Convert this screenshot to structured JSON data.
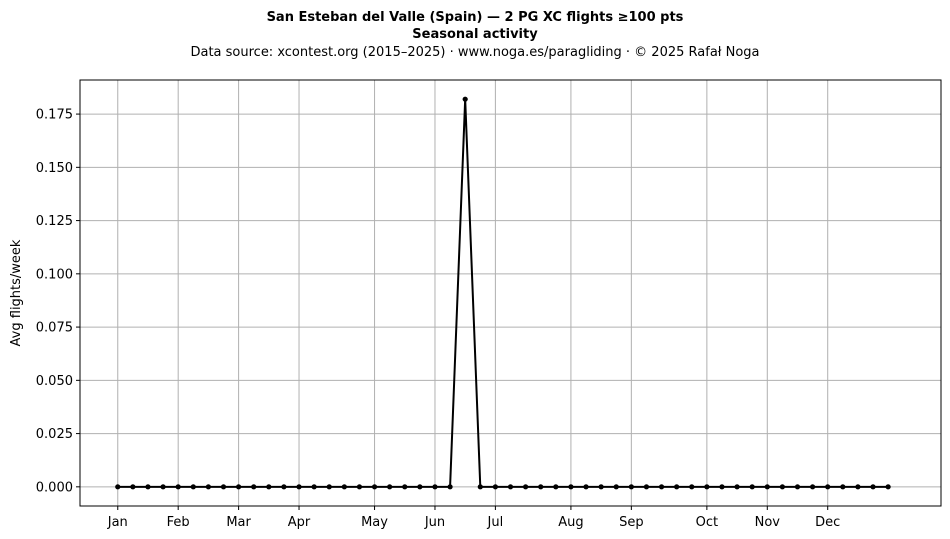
{
  "titles": {
    "line1": "San Esteban del Valle (Spain)  —  2 PG XC flights ≥100 pts",
    "line2": "Seasonal activity",
    "line3": "Data source: xcontest.org (2015–2025)  ·  www.noga.es/paragliding  ·  © 2025 Rafał Noga"
  },
  "chart_data": {
    "type": "line",
    "ylabel": "Avg flights/week",
    "xlabel": "",
    "xlim": [
      -2.5,
      54.5
    ],
    "ylim": [
      -0.009,
      0.191
    ],
    "grid": true,
    "line_color": "#000000",
    "marker": "circle",
    "month_ticks": [
      {
        "label": "Jan",
        "week": 0
      },
      {
        "label": "Feb",
        "week": 4
      },
      {
        "label": "Mar",
        "week": 8
      },
      {
        "label": "Apr",
        "week": 12
      },
      {
        "label": "May",
        "week": 17
      },
      {
        "label": "Jun",
        "week": 21
      },
      {
        "label": "Jul",
        "week": 25
      },
      {
        "label": "Aug",
        "week": 30
      },
      {
        "label": "Sep",
        "week": 34
      },
      {
        "label": "Oct",
        "week": 39
      },
      {
        "label": "Nov",
        "week": 43
      },
      {
        "label": "Dec",
        "week": 47
      }
    ],
    "y_ticks": [
      "0.000",
      "0.025",
      "0.050",
      "0.075",
      "0.100",
      "0.125",
      "0.150",
      "0.175"
    ],
    "x": [
      0,
      1,
      2,
      3,
      4,
      5,
      6,
      7,
      8,
      9,
      10,
      11,
      12,
      13,
      14,
      15,
      16,
      17,
      18,
      19,
      20,
      21,
      22,
      23,
      24,
      25,
      26,
      27,
      28,
      29,
      30,
      31,
      32,
      33,
      34,
      35,
      36,
      37,
      38,
      39,
      40,
      41,
      42,
      43,
      44,
      45,
      46,
      47,
      48,
      49,
      50,
      51
    ],
    "values": [
      0,
      0,
      0,
      0,
      0,
      0,
      0,
      0,
      0,
      0,
      0,
      0,
      0,
      0,
      0,
      0,
      0,
      0,
      0,
      0,
      0,
      0,
      0,
      0.182,
      0,
      0,
      0,
      0,
      0,
      0,
      0,
      0,
      0,
      0,
      0,
      0,
      0,
      0,
      0,
      0,
      0,
      0,
      0,
      0,
      0,
      0,
      0,
      0,
      0,
      0,
      0,
      0
    ]
  }
}
